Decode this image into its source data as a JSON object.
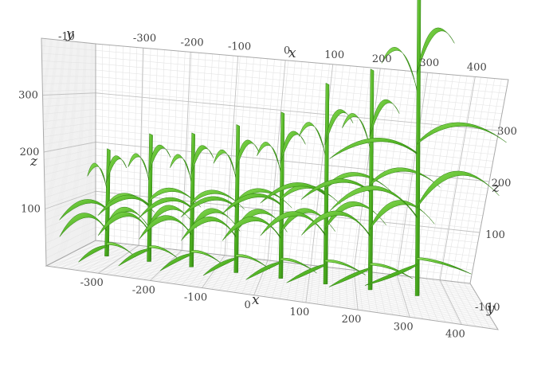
{
  "chart_data": {
    "type": "scatter",
    "render": "3d-plant-models",
    "title": "",
    "xlabel": "x",
    "ylabel": "y",
    "zlabel": "z",
    "xlim": [
      -400,
      470
    ],
    "ylim": [
      -10,
      10
    ],
    "zlim": [
      0,
      400
    ],
    "x_ticks": [
      "-300",
      "-200",
      "-100",
      "0",
      "100",
      "200",
      "300",
      "400"
    ],
    "x_tick_values": [
      -300,
      -200,
      -100,
      0,
      100,
      200,
      300,
      400
    ],
    "y_ticks_front": [
      "-10"
    ],
    "y_ticks_back": [
      "10"
    ],
    "z_ticks": [
      "100",
      "200",
      "300"
    ],
    "z_tick_values": [
      100,
      200,
      300
    ],
    "grid": true,
    "plant_color": "#4caf1f",
    "plant_highlight": "#8fe05a",
    "plant_shadow": "#2e7d12",
    "plants": [
      {
        "x": -330,
        "height": 150
      },
      {
        "x": -240,
        "height": 175
      },
      {
        "x": -150,
        "height": 180
      },
      {
        "x": -55,
        "height": 195
      },
      {
        "x": 40,
        "height": 215
      },
      {
        "x": 135,
        "height": 255
      },
      {
        "x": 230,
        "height": 275
      },
      {
        "x": 330,
        "height": 390
      }
    ]
  }
}
